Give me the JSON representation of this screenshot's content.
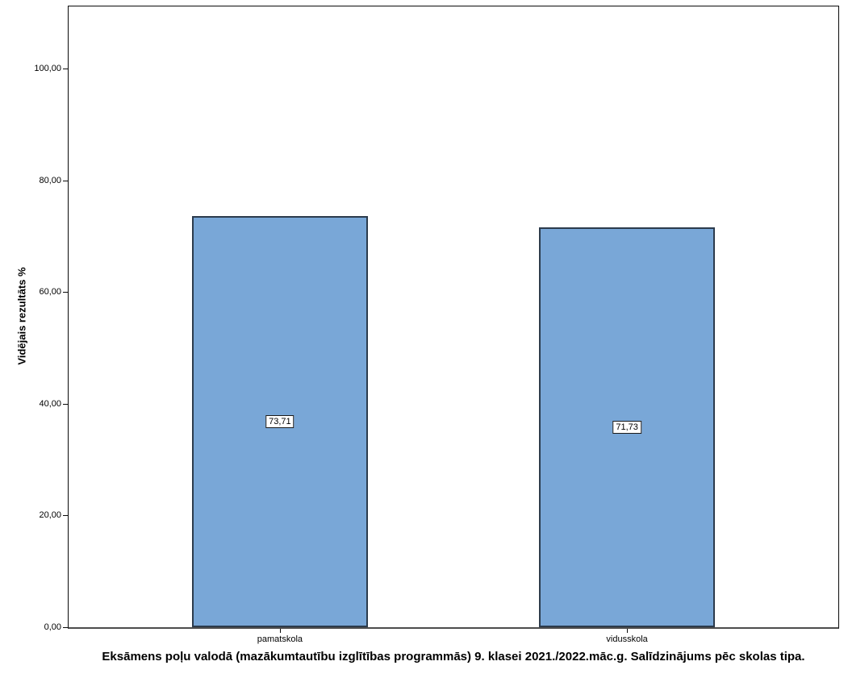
{
  "chart_data": {
    "type": "bar",
    "categories": [
      "pamatskola",
      "vidusskola"
    ],
    "values": [
      73.71,
      71.73
    ],
    "value_labels": [
      "73,71",
      "71,73"
    ],
    "title": "",
    "xlabel": "Eksāmens poļu valodā (mazākumtautību izglītības programmās) 9. klasei 2021./2022.māc.g. Salīdzinājums pēc skolas tipa.",
    "ylabel": "Vidējais rezultāts %",
    "ylim": [
      0,
      111.4
    ],
    "yticks": [
      0,
      20,
      40,
      60,
      80,
      100
    ],
    "ytick_labels": [
      "0,00",
      "20,00",
      "40,00",
      "60,00",
      "80,00",
      "100,00"
    ],
    "grid": false,
    "legend": "none",
    "bar_fill": "#79a7d7",
    "bar_border": "#2c3b4c",
    "frame_color": "#0a0a0a",
    "baseline_color": "#4d4d4d"
  }
}
